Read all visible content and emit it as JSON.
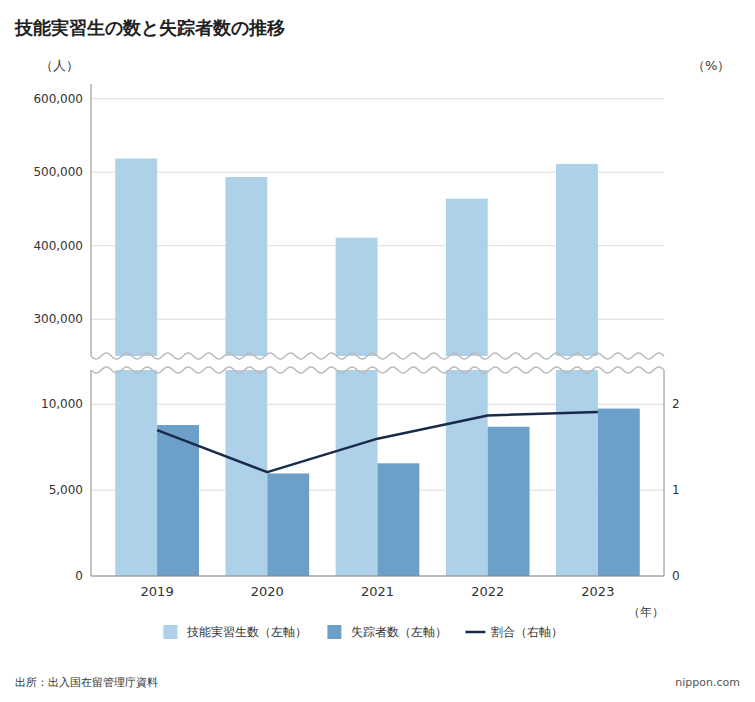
{
  "chart_data": [
    {
      "type": "bar",
      "title": "技能実習生の数と失踪者数の推移",
      "y_label": "（人）",
      "categories": [
        null,
        null,
        null,
        null,
        null
      ],
      "series": [
        {
          "name": "技能実習生数（左軸）",
          "color": "#add1e8",
          "values": [
            518590,
            493477,
            410993,
            464051,
            511346
          ]
        }
      ],
      "ylim": [
        250000,
        620000
      ],
      "yticks": [
        {
          "value": 300000,
          "label": "300,000"
        },
        {
          "value": 400000,
          "label": "400,000"
        },
        {
          "value": 500000,
          "label": "500,000"
        },
        {
          "value": 600000,
          "label": "600,000"
        }
      ],
      "grid": true,
      "legend": "bottom",
      "source": "出所：出入国在留管理庁資料",
      "annotations": [
        "nippon.com"
      ]
    },
    {
      "type": "bar",
      "x_label": "（年）",
      "y2_label": "（%）",
      "categories": [
        "2019",
        "2020",
        "2021",
        "2022",
        "2023"
      ],
      "series": [
        {
          "name": "失踪者数（左軸）",
          "color": "#6ca0c8",
          "values": [
            8796,
            5975,
            6566,
            8695,
            9753
          ]
        },
        {
          "name": "割合（右軸）",
          "type": "line",
          "axis": "y2",
          "color": "#1a2a4a",
          "values": [
            1.7,
            1.21,
            1.6,
            1.87,
            1.91
          ]
        }
      ],
      "ylim": [
        0,
        12000
      ],
      "yticks": [
        0,
        {
          "value": 5000,
          "label": "5,000"
        },
        {
          "value": 10000,
          "label": "10,000"
        }
      ],
      "y2lim": [
        0,
        2.4
      ],
      "y2ticks": [
        0,
        1,
        2
      ],
      "grid": true,
      "legend": "bottom"
    }
  ]
}
